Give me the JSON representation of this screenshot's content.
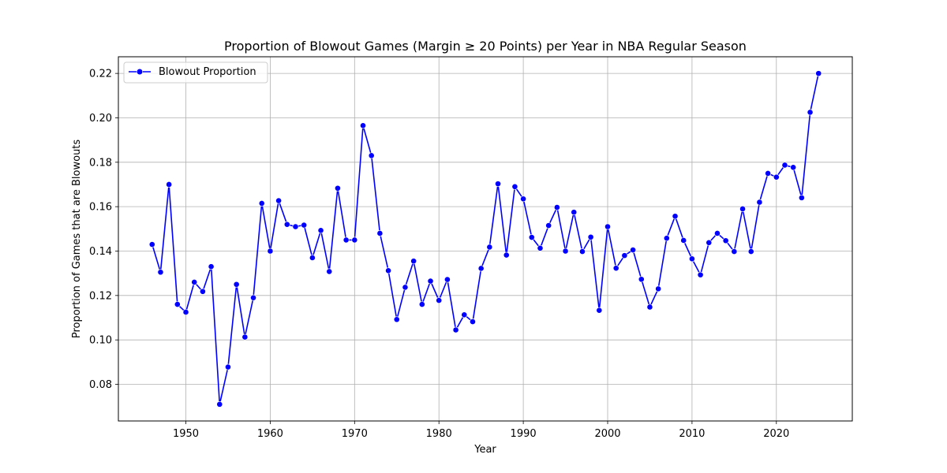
{
  "chart_data": {
    "type": "line",
    "title": "Proportion of Blowout Games (Margin ≥ 20 Points) per Year in NBA Regular Season",
    "xlabel": "Year",
    "ylabel": "Proportion of Games that are Blowouts",
    "xlim": [
      1942,
      2029
    ],
    "ylim": [
      0.0635,
      0.2275
    ],
    "xticks": [
      1950,
      1960,
      1970,
      1980,
      1990,
      2000,
      2010,
      2020
    ],
    "yticks": [
      0.08,
      0.1,
      0.12,
      0.14,
      0.16,
      0.18,
      0.2,
      0.22
    ],
    "ytick_labels": [
      "0.08",
      "0.10",
      "0.12",
      "0.14",
      "0.16",
      "0.18",
      "0.20",
      "0.22"
    ],
    "grid": true,
    "legend_position": "top-left",
    "series": [
      {
        "name": "Blowout Proportion",
        "color": "#0000ff",
        "marker": "circle",
        "x": [
          1946,
          1947,
          1948,
          1949,
          1950,
          1951,
          1952,
          1953,
          1954,
          1955,
          1956,
          1957,
          1958,
          1959,
          1960,
          1961,
          1962,
          1963,
          1964,
          1965,
          1966,
          1967,
          1968,
          1969,
          1970,
          1971,
          1972,
          1973,
          1974,
          1975,
          1976,
          1977,
          1978,
          1979,
          1980,
          1981,
          1982,
          1983,
          1984,
          1985,
          1986,
          1987,
          1988,
          1989,
          1990,
          1991,
          1992,
          1993,
          1994,
          1995,
          1996,
          1997,
          1998,
          1999,
          2000,
          2001,
          2002,
          2003,
          2004,
          2005,
          2006,
          2007,
          2008,
          2009,
          2010,
          2011,
          2012,
          2013,
          2014,
          2015,
          2016,
          2017,
          2018,
          2019,
          2020,
          2021,
          2022,
          2023,
          2024,
          2025
        ],
        "values": [
          0.143,
          0.1305,
          0.17,
          0.116,
          0.1125,
          0.126,
          0.1218,
          0.133,
          0.071,
          0.0878,
          0.125,
          0.1013,
          0.119,
          0.1615,
          0.14,
          0.1627,
          0.152,
          0.151,
          0.1517,
          0.137,
          0.1493,
          0.1308,
          0.1683,
          0.145,
          0.145,
          0.1965,
          0.183,
          0.148,
          0.1312,
          0.1092,
          0.1237,
          0.1355,
          0.116,
          0.1265,
          0.1178,
          0.1272,
          0.1045,
          0.1113,
          0.1082,
          0.1322,
          0.1418,
          0.1703,
          0.1382,
          0.169,
          0.1635,
          0.1462,
          0.1413,
          0.1515,
          0.1597,
          0.14,
          0.1575,
          0.1398,
          0.1463,
          0.1133,
          0.151,
          0.1323,
          0.138,
          0.1405,
          0.1273,
          0.1148,
          0.123,
          0.1458,
          0.1557,
          0.1448,
          0.1365,
          0.1293,
          0.1438,
          0.148,
          0.1447,
          0.1398,
          0.159,
          0.1398,
          0.162,
          0.175,
          0.1733,
          0.1787,
          0.1777,
          0.164,
          0.2025,
          0.22
        ]
      }
    ]
  }
}
